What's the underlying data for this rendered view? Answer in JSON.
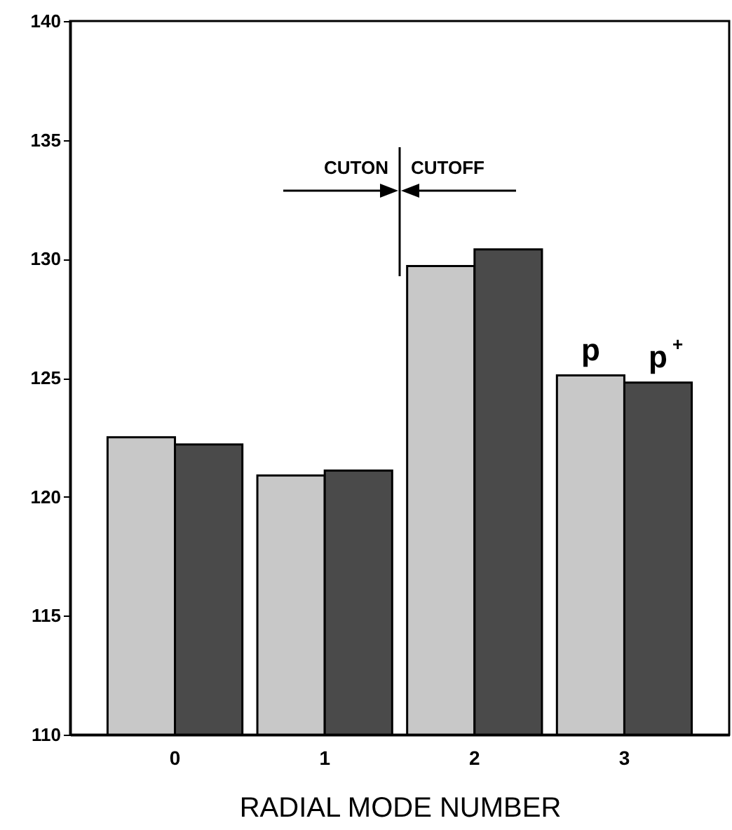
{
  "chart_data": {
    "type": "bar",
    "xlabel": "RADIAL MODE NUMBER",
    "categories": [
      "0",
      "1",
      "2",
      "3"
    ],
    "series": [
      {
        "name": "p",
        "color": "#c8c8c8",
        "values": [
          122.5,
          120.9,
          129.7,
          125.1
        ]
      },
      {
        "name": "p$^{+}$",
        "color": "#4a4a4a",
        "values": [
          122.2,
          121.1,
          130.4,
          124.8
        ]
      }
    ],
    "ylim": [
      110,
      140
    ],
    "yticks": [
      110,
      115,
      120,
      125,
      130,
      135,
      140
    ],
    "annotations": [
      "CUTON",
      "CUTOFF"
    ]
  }
}
